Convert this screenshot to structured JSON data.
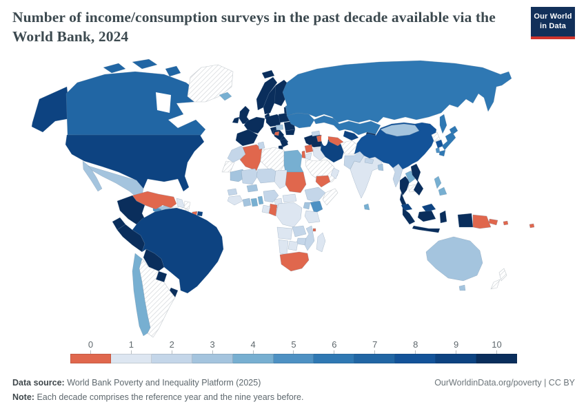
{
  "header": {
    "title": "Number of income/consumption surveys in the past decade available via the World Bank, 2024"
  },
  "logo": {
    "line1": "Our World",
    "line2": "in Data"
  },
  "colors": {
    "logo_navy": "#12305a",
    "logo_red": "#d0342c",
    "title_text": "#3d4a50",
    "no_data_hatch_line": "#d8dbde",
    "country_border": "#6e8aa3"
  },
  "footer": {
    "source_label": "Data source:",
    "source": "World Bank Poverty and Inequality Platform (2025)",
    "note_label": "Note:",
    "note": "Each decade comprises the reference year and the nine years before.",
    "link": "OurWorldinData.org/poverty | CC BY"
  },
  "chart_data": {
    "type": "choropleth-map",
    "title": "Number of income/consumption surveys in the past decade available via the World Bank, 2024",
    "legend": {
      "labels": [
        "0",
        "1",
        "2",
        "3",
        "4",
        "5",
        "6",
        "7",
        "8",
        "9",
        "10"
      ],
      "colors": [
        "#e0674d",
        "#dde6f1",
        "#c4d6e9",
        "#a4c4de",
        "#77afd1",
        "#4e91c3",
        "#2f78b3",
        "#2166a4",
        "#135399",
        "#0d4381",
        "#0a2e5c"
      ],
      "position": "bottom"
    },
    "no_data_style": "white-diagonal-hatch",
    "regions": {
      "alaska": 9,
      "canada": 7,
      "greenland": null,
      "united-states": 9,
      "mexico": 3,
      "guatemala": 5,
      "honduras": 0,
      "nicaragua": 0,
      "costa-rica": 10,
      "panama": 10,
      "cuba": null,
      "haiti": 0,
      "dominican-republic": 9,
      "venezuela": 0,
      "colombia": 10,
      "guyana": 1,
      "suriname": null,
      "ecuador": 10,
      "peru": 10,
      "brazil": 9,
      "bolivia": 10,
      "paraguay": 10,
      "uruguay": 10,
      "chile": 4,
      "argentina": null,
      "iceland": 4,
      "svalbard": 10,
      "united-kingdom": 10,
      "ireland": 10,
      "norway": 10,
      "sweden": 10,
      "finland": 10,
      "denmark": 10,
      "baltics": 10,
      "germany": 10,
      "france": 10,
      "iberia": 10,
      "italy": 10,
      "sicily": 10,
      "poland": 10,
      "hungary": 3,
      "balkans": 10,
      "bosnia": 0,
      "greece": 10,
      "romania": 10,
      "bulgaria": 10,
      "belarus": 6,
      "ukraine": 6,
      "russia": 6,
      "sakhalin": 6,
      "turkey": 10,
      "syria": 0,
      "iraq": 1,
      "israel": 0,
      "jordan": 1,
      "saudi-arabia": null,
      "yemen": 0,
      "oman": 1,
      "iran": 9,
      "georgia": 2,
      "azerbaijan": 0,
      "turkmenistan": 0,
      "uzbekistan": 9,
      "kazakhstan": 6,
      "kyrgyzstan": 10,
      "tajikistan": 9,
      "afghanistan": null,
      "pakistan": 2,
      "india": 1,
      "nepal": 2,
      "bangladesh": 3,
      "sri-lanka": 4,
      "myanmar": 2,
      "thailand": 10,
      "laos": 4,
      "cambodia": null,
      "vietnam": 10,
      "malaysia": 9,
      "borneo-malaysia": 9,
      "sumatra": 10,
      "kalimantan": 10,
      "java": 10,
      "sulawesi": 10,
      "west-papua": 10,
      "papua-new-guinea": 0,
      "new-britain": 0,
      "solomon-islands": 0,
      "fiji": 0,
      "philippines": 4,
      "china": 8,
      "mongolia": 3,
      "taiwan": 5,
      "north-korea": null,
      "south-korea": 8,
      "japan-hokkaido": 6,
      "japan-honshu": 6,
      "japan-kyushu": 6,
      "morocco": 2,
      "western-sahara": null,
      "algeria": 0,
      "tunisia": 2,
      "libya": null,
      "egypt": 4,
      "mauritania": 3,
      "mali": 2,
      "burkina-faso": 3,
      "niger": 2,
      "chad": 1,
      "sudan": 0,
      "senegal": 2,
      "guinea": 1,
      "ivory-coast": 3,
      "ghana": 4,
      "togo-benin": 4,
      "nigeria": 2,
      "cameroon": 1,
      "central-african-republic": 1,
      "ethiopia": 2,
      "somalia": null,
      "kenya": 5,
      "uganda": 3,
      "tanzania": 1,
      "drc": 1,
      "congo": 0,
      "gabon": 1,
      "angola": 1,
      "zambia": 2,
      "mozambique": 2,
      "zimbabwe": 2,
      "botswana": 1,
      "namibia": 1,
      "south-africa": 0,
      "madagascar": 1,
      "comoros": 0,
      "australia": 3,
      "tasmania": 3,
      "new-zealand-north": null,
      "new-zealand-south": null
    }
  }
}
